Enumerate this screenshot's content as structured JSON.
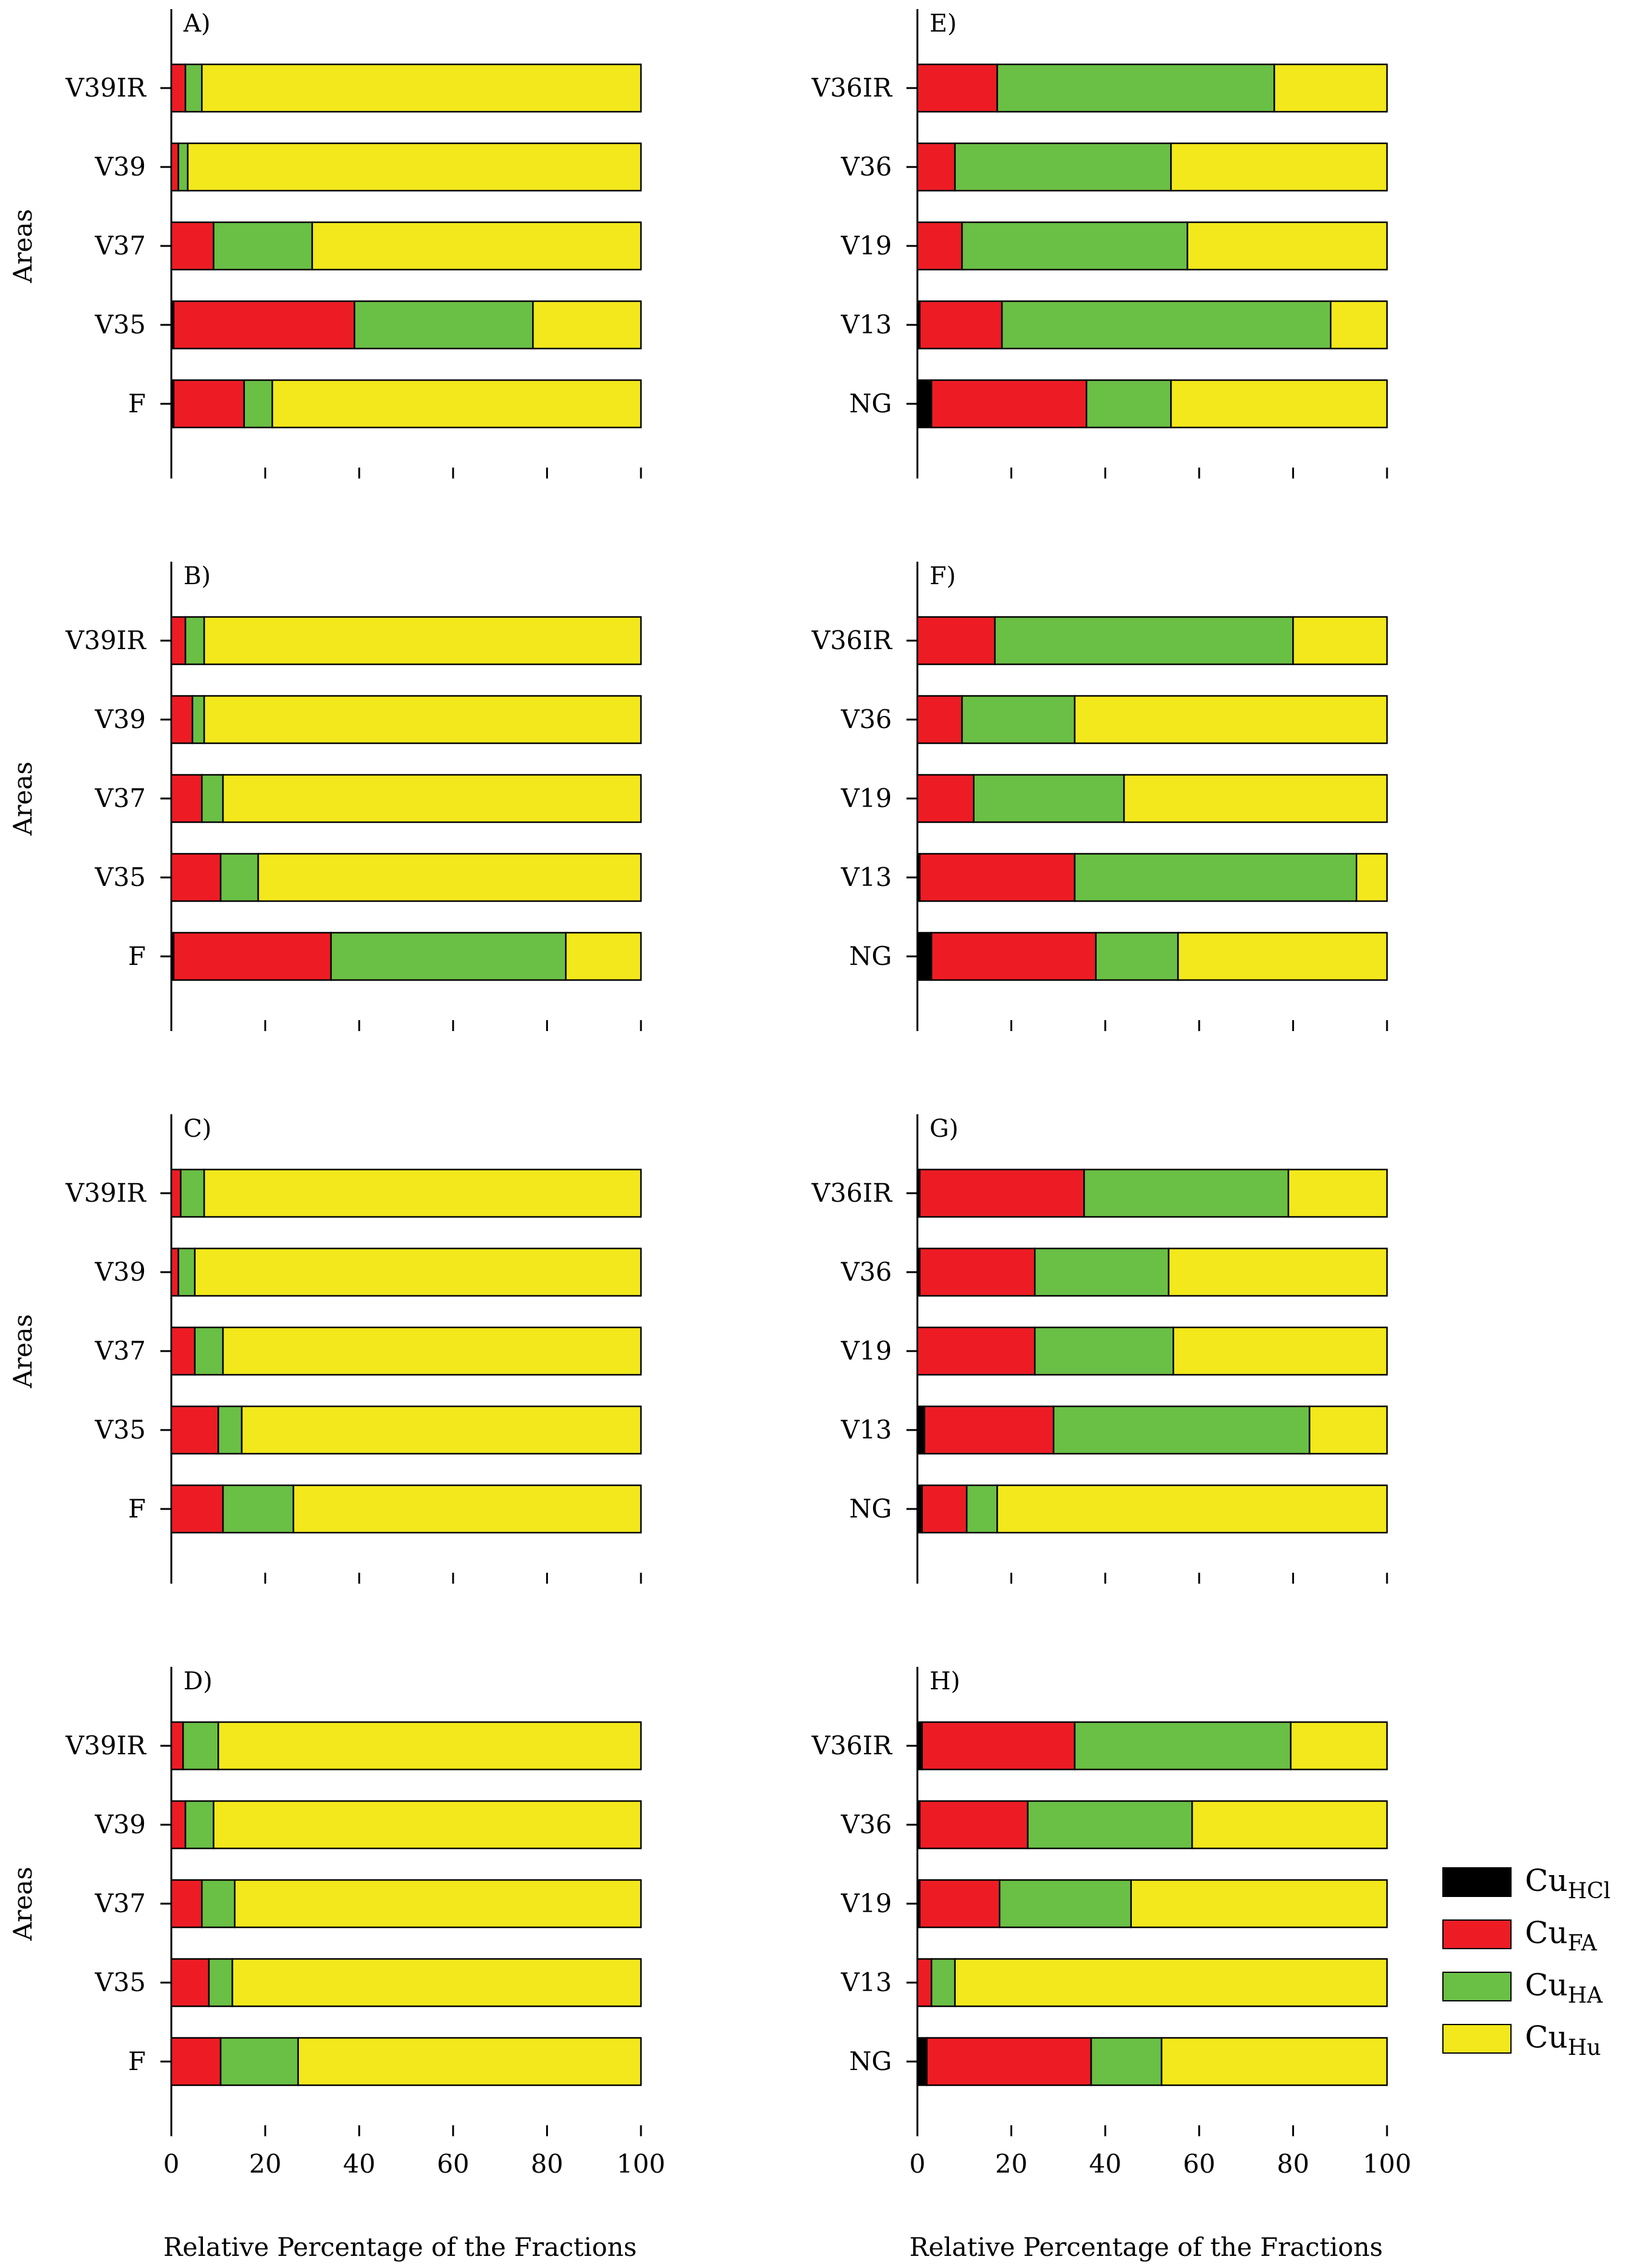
{
  "chart_data": {
    "type": "bar",
    "orientation": "horizontal",
    "stacked": true,
    "xlabel": "Relative Percentage of the Fractions",
    "ylabel": "Areas",
    "xlim": [
      0,
      100
    ],
    "xticks": [
      0,
      20,
      40,
      60,
      80,
      100
    ],
    "fractions": [
      "HCl",
      "FA",
      "HA",
      "Hu"
    ],
    "legend": {
      "position": "bottom-right",
      "entries": [
        {
          "base": "Cu",
          "sub": "HCl",
          "color": "#000000"
        },
        {
          "base": "Cu",
          "sub": "FA",
          "color": "#ed1c24"
        },
        {
          "base": "Cu",
          "sub": "HA",
          "color": "#6abf45"
        },
        {
          "base": "Cu",
          "sub": "Hu",
          "color": "#f2e81b"
        }
      ]
    },
    "panels": [
      {
        "label": "A)",
        "categories": [
          "V39IR",
          "V39",
          "V37",
          "V35",
          "F"
        ],
        "series": [
          {
            "name": "HCl",
            "values": [
              0,
              0,
              0,
              0.5,
              0.5
            ]
          },
          {
            "name": "FA",
            "values": [
              3,
              1.5,
              9,
              38.5,
              15
            ]
          },
          {
            "name": "HA",
            "values": [
              3.5,
              2,
              21,
              38,
              6
            ]
          },
          {
            "name": "Hu",
            "values": [
              93.5,
              96.5,
              70,
              23,
              78.5
            ]
          }
        ]
      },
      {
        "label": "B)",
        "categories": [
          "V39IR",
          "V39",
          "V37",
          "V35",
          "F"
        ],
        "series": [
          {
            "name": "HCl",
            "values": [
              0,
              0,
              0,
              0,
              0.5
            ]
          },
          {
            "name": "FA",
            "values": [
              3,
              4.5,
              6.5,
              10.5,
              33.5
            ]
          },
          {
            "name": "HA",
            "values": [
              4,
              2.5,
              4.5,
              8,
              50
            ]
          },
          {
            "name": "Hu",
            "values": [
              93,
              93,
              89,
              81.5,
              16
            ]
          }
        ]
      },
      {
        "label": "C)",
        "categories": [
          "V39IR",
          "V39",
          "V37",
          "V35",
          "F"
        ],
        "series": [
          {
            "name": "HCl",
            "values": [
              0,
              0,
              0,
              0,
              0
            ]
          },
          {
            "name": "FA",
            "values": [
              2,
              1.5,
              5,
              10,
              11
            ]
          },
          {
            "name": "HA",
            "values": [
              5,
              3.5,
              6,
              5,
              15
            ]
          },
          {
            "name": "Hu",
            "values": [
              93,
              95,
              89,
              85,
              74
            ]
          }
        ]
      },
      {
        "label": "D)",
        "categories": [
          "V39IR",
          "V39",
          "V37",
          "V35",
          "F"
        ],
        "series": [
          {
            "name": "HCl",
            "values": [
              0,
              0,
              0,
              0,
              0
            ]
          },
          {
            "name": "FA",
            "values": [
              2.5,
              3,
              6.5,
              8,
              10.5
            ]
          },
          {
            "name": "HA",
            "values": [
              7.5,
              6,
              7,
              5,
              16.5
            ]
          },
          {
            "name": "Hu",
            "values": [
              90,
              91,
              86.5,
              87,
              73
            ]
          }
        ]
      },
      {
        "label": "E)",
        "categories": [
          "V36IR",
          "V36",
          "V19",
          "V13",
          "NG"
        ],
        "series": [
          {
            "name": "HCl",
            "values": [
              0,
              0,
              0,
              0.5,
              3
            ]
          },
          {
            "name": "FA",
            "values": [
              17,
              8,
              9.5,
              17.5,
              33
            ]
          },
          {
            "name": "HA",
            "values": [
              59,
              46,
              48,
              70,
              18
            ]
          },
          {
            "name": "Hu",
            "values": [
              24,
              46,
              42.5,
              12,
              46
            ]
          }
        ]
      },
      {
        "label": "F)",
        "categories": [
          "V36IR",
          "V36",
          "V19",
          "V13",
          "NG"
        ],
        "series": [
          {
            "name": "HCl",
            "values": [
              0,
              0,
              0,
              0.5,
              3
            ]
          },
          {
            "name": "FA",
            "values": [
              16.5,
              9.5,
              12,
              33,
              35
            ]
          },
          {
            "name": "HA",
            "values": [
              63.5,
              24,
              32,
              60,
              17.5
            ]
          },
          {
            "name": "Hu",
            "values": [
              20,
              66.5,
              56,
              6.5,
              44.5
            ]
          }
        ]
      },
      {
        "label": "G)",
        "categories": [
          "V36IR",
          "V36",
          "V19",
          "V13",
          "NG"
        ],
        "series": [
          {
            "name": "HCl",
            "values": [
              0.5,
              0.5,
              0,
              1.5,
              1
            ]
          },
          {
            "name": "FA",
            "values": [
              35,
              24.5,
              25,
              27.5,
              9.5
            ]
          },
          {
            "name": "HA",
            "values": [
              43.5,
              28.5,
              29.5,
              54.5,
              6.5
            ]
          },
          {
            "name": "Hu",
            "values": [
              21,
              46.5,
              45.5,
              16.5,
              83
            ]
          }
        ]
      },
      {
        "label": "H)",
        "categories": [
          "V36IR",
          "V36",
          "V19",
          "V13",
          "NG"
        ],
        "series": [
          {
            "name": "HCl",
            "values": [
              1,
              0.5,
              0.5,
              0,
              2
            ]
          },
          {
            "name": "FA",
            "values": [
              32.5,
              23,
              17,
              3,
              35
            ]
          },
          {
            "name": "HA",
            "values": [
              46,
              35,
              28,
              5,
              15
            ]
          },
          {
            "name": "Hu",
            "values": [
              20.5,
              41.5,
              54.5,
              92,
              48
            ]
          }
        ]
      }
    ]
  }
}
